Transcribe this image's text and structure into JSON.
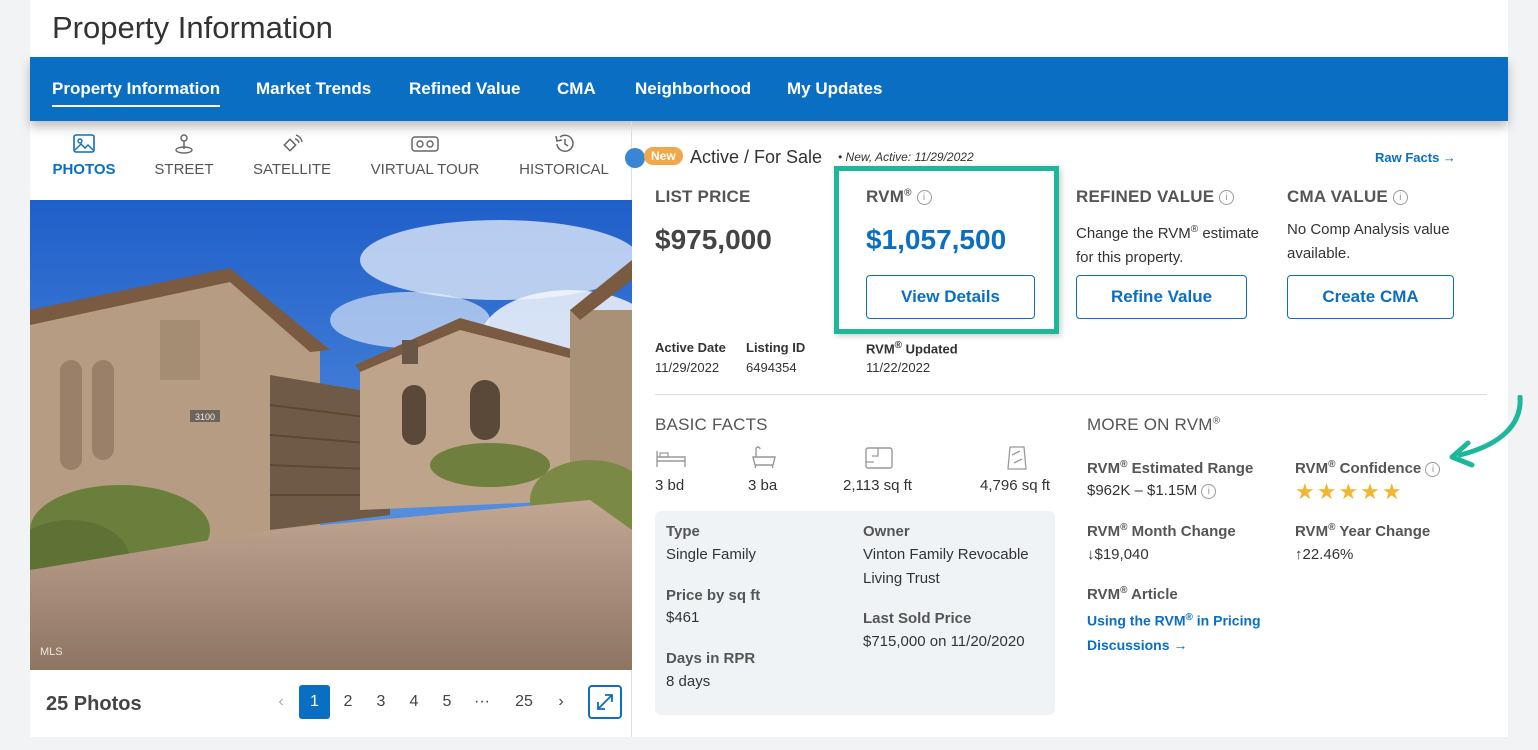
{
  "page": {
    "title": "Property Information"
  },
  "nav": {
    "tabs": [
      "Property Information",
      "Market Trends",
      "Refined Value",
      "CMA",
      "Neighborhood",
      "My Updates"
    ],
    "active": "Property Information"
  },
  "media": {
    "modes": [
      "PHOTOS",
      "STREET",
      "SATELLITE",
      "VIRTUAL TOUR",
      "HISTORICAL"
    ],
    "active_mode": "PHOTOS",
    "photo_watermark": "MLS",
    "house_number": "3100",
    "photo_count": "25 Photos",
    "pages": [
      "1",
      "2",
      "3",
      "4",
      "5",
      "···",
      "25"
    ],
    "current_page": "1",
    "prev": "‹",
    "next": "›"
  },
  "status": {
    "badge": "New",
    "text": "Active / For Sale",
    "note": "• New, Active: 11/29/2022",
    "raw_facts": "Raw Facts →"
  },
  "values": {
    "list_price_label": "LIST PRICE",
    "list_price": "$975,000",
    "rvm_label": "RVM",
    "rvm_price": "$1,057,500",
    "view_details": "View Details",
    "refined_label": "REFINED VALUE",
    "refined_desc_1": "Change the RVM",
    "refined_desc_1b": " estimate",
    "refined_desc_2": "for this property.",
    "refine_button": "Refine Value",
    "cma_label": "CMA VALUE",
    "cma_desc_1": "No Comp Analysis value",
    "cma_desc_2": "available.",
    "cma_button": "Create CMA",
    "registered": "®",
    "info": "i"
  },
  "meta": {
    "active_date_label": "Active Date",
    "active_date": "11/29/2022",
    "listing_id_label": "Listing ID",
    "listing_id": "6494354",
    "rvm_updated_label": "RVM",
    "rvm_updated_suffix": " Updated",
    "rvm_updated": "11/22/2022"
  },
  "basic_facts": {
    "heading": "BASIC FACTS",
    "beds": "3 bd",
    "baths": "3 ba",
    "sqft": "2,113 sq ft",
    "lot": "4,796 sq ft",
    "type_label": "Type",
    "type": "Single Family",
    "owner_label": "Owner",
    "owner_1": "Vinton Family Revocable",
    "owner_2": "Living Trust",
    "price_sqft_label": "Price by sq ft",
    "price_sqft": "$461",
    "last_sold_label": "Last Sold Price",
    "last_sold": "$715,000 on 11/20/2020",
    "days_label": "Days in RPR",
    "days": "8 days"
  },
  "more_rvm": {
    "heading": "MORE ON RVM",
    "range_label_a": "RVM",
    "range_label_b": " Estimated Range",
    "range": "$962K – $1.15M",
    "confidence_label_a": "RVM",
    "confidence_label_b": " Confidence",
    "confidence_stars": 5,
    "stars_text": "★★★★★",
    "month_label_a": "RVM",
    "month_label_b": " Month Change",
    "month_change": "↓$19,040",
    "year_label_a": "RVM",
    "year_label_b": " Year Change",
    "year_change": "↑22.46%",
    "article_label_a": "RVM",
    "article_label_b": " Article",
    "article_link_1a": "Using the RVM",
    "article_link_1b": " in Pricing",
    "article_link_2": "Discussions →"
  },
  "colors": {
    "brand_blue": "#0a6fc2",
    "highlight_green": "#1fb79a",
    "star": "#f2b632",
    "badge_orange": "#f0a84a"
  }
}
